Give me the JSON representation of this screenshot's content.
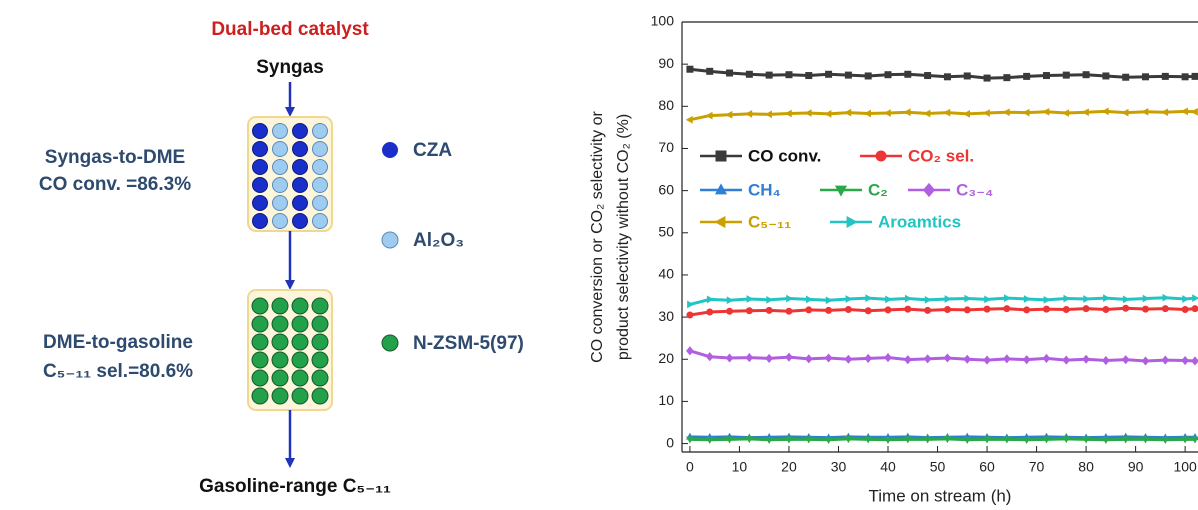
{
  "diagram": {
    "title": "Dual-bed catalyst",
    "feed": "Syngas",
    "product": "Gasoline-range C₅₋₁₁",
    "stages": [
      {
        "name": "Syngas-to-DME",
        "metric": "CO conv. =86.3%"
      },
      {
        "name": "DME-to-gasoline",
        "metric": "C₅₋₁₁ sel.=80.6%"
      }
    ],
    "materials": [
      "CZA",
      "Al₂O₃",
      "N-ZSM-5(97)"
    ]
  },
  "chart_data": {
    "type": "line",
    "xlabel": "Time on stream (h)",
    "ylabel": [
      "CO conversion or CO₂ selectivity or",
      "product selectivity without CO₂ (%)"
    ],
    "x": [
      0,
      4,
      8,
      12,
      16,
      20,
      24,
      28,
      32,
      36,
      40,
      44,
      48,
      52,
      56,
      60,
      64,
      68,
      72,
      76,
      80,
      84,
      88,
      92,
      96,
      100,
      102
    ],
    "xlim": [
      -1.6,
      102.6
    ],
    "xticks": [
      0,
      10,
      20,
      30,
      40,
      50,
      60,
      70,
      80,
      90,
      100
    ],
    "ylim": [
      -2,
      100
    ],
    "yticks": [
      0,
      10,
      20,
      30,
      40,
      50,
      60,
      70,
      80,
      90,
      100
    ],
    "series": [
      {
        "name": "CO conv.",
        "color": "#3a3a3a",
        "marker": "square",
        "values": [
          88.8,
          88.3,
          87.9,
          87.6,
          87.4,
          87.5,
          87.3,
          87.6,
          87.4,
          87.2,
          87.5,
          87.6,
          87.3,
          87.0,
          87.2,
          86.7,
          86.8,
          87.1,
          87.3,
          87.4,
          87.5,
          87.2,
          86.9,
          87.0,
          87.1,
          87.0,
          87.1
        ]
      },
      {
        "name": "CO₂ sel.",
        "color": "#ee3535",
        "marker": "circle",
        "values": [
          30.5,
          31.2,
          31.4,
          31.5,
          31.6,
          31.4,
          31.7,
          31.6,
          31.8,
          31.5,
          31.7,
          31.9,
          31.6,
          31.8,
          31.7,
          31.9,
          32.0,
          31.7,
          31.9,
          31.8,
          32.0,
          31.8,
          32.1,
          31.9,
          32.0,
          31.8,
          32.0
        ]
      },
      {
        "name": "CH₄",
        "color": "#2f7fd6",
        "marker": "triangle-up",
        "values": [
          1.6,
          1.5,
          1.6,
          1.4,
          1.5,
          1.6,
          1.5,
          1.4,
          1.6,
          1.5,
          1.5,
          1.6,
          1.4,
          1.5,
          1.6,
          1.5,
          1.4,
          1.5,
          1.6,
          1.5,
          1.4,
          1.5,
          1.6,
          1.5,
          1.4,
          1.5,
          1.5
        ]
      },
      {
        "name": "C₂",
        "color": "#2aa84a",
        "marker": "triangle-down",
        "values": [
          1.0,
          0.9,
          1.0,
          1.1,
          0.9,
          1.0,
          1.0,
          0.9,
          1.1,
          1.0,
          0.9,
          1.0,
          1.0,
          1.1,
          0.9,
          1.0,
          1.0,
          0.9,
          1.0,
          1.1,
          1.0,
          0.9,
          1.0,
          1.0,
          0.9,
          1.0,
          1.0
        ]
      },
      {
        "name": "C₃₋₄",
        "color": "#b05fe0",
        "marker": "diamond",
        "values": [
          22.0,
          20.6,
          20.3,
          20.4,
          20.2,
          20.5,
          20.1,
          20.3,
          20.0,
          20.2,
          20.4,
          19.9,
          20.1,
          20.3,
          20.0,
          19.8,
          20.1,
          19.9,
          20.2,
          19.8,
          20.0,
          19.7,
          19.9,
          19.6,
          19.8,
          19.7,
          19.6
        ]
      },
      {
        "name": "C₅₋₁₁",
        "color": "#c9a000",
        "marker": "triangle-left",
        "values": [
          76.8,
          77.8,
          78.0,
          78.2,
          78.1,
          78.3,
          78.4,
          78.2,
          78.5,
          78.3,
          78.4,
          78.6,
          78.3,
          78.5,
          78.2,
          78.4,
          78.6,
          78.5,
          78.7,
          78.4,
          78.6,
          78.8,
          78.5,
          78.7,
          78.6,
          78.8,
          78.7
        ]
      },
      {
        "name": "Aroamtics",
        "color": "#23c4c4",
        "marker": "triangle-right",
        "values": [
          33.0,
          34.2,
          34.0,
          34.3,
          34.1,
          34.4,
          34.2,
          34.0,
          34.3,
          34.5,
          34.2,
          34.4,
          34.1,
          34.3,
          34.4,
          34.2,
          34.5,
          34.3,
          34.1,
          34.4,
          34.3,
          34.5,
          34.2,
          34.4,
          34.6,
          34.3,
          34.5
        ]
      }
    ]
  }
}
